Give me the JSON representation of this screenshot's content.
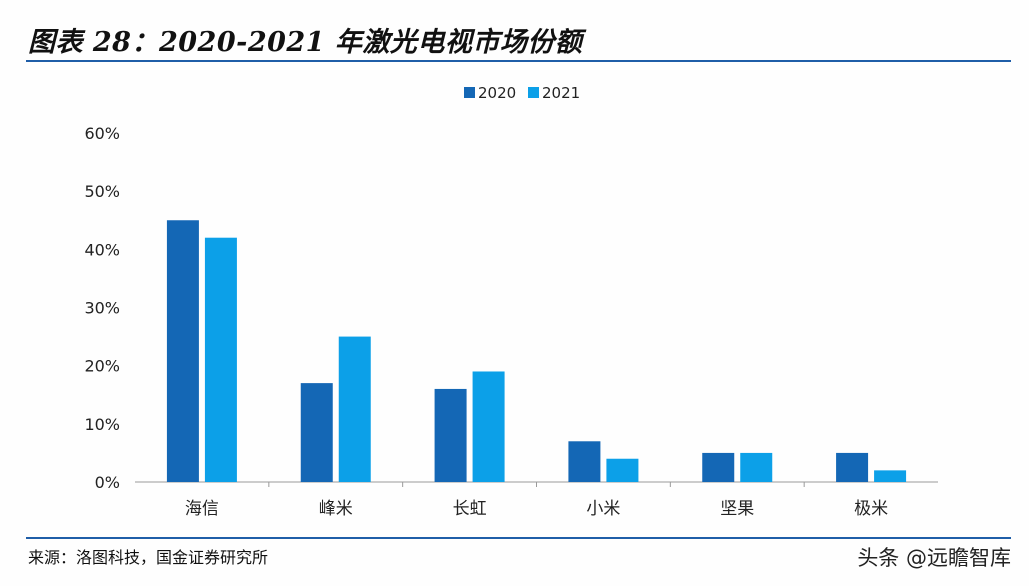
{
  "header": {
    "title": "图表 28：2020-2021 年激光电视市场份额"
  },
  "footer": {
    "source": "来源：洛图科技，国金证券研究所",
    "watermark": "头条 @远瞻智库"
  },
  "colors": {
    "series_2020": "#1467b5",
    "series_2021": "#0ca0e8",
    "axis": "#9a9a9a",
    "rule": "#1f5ea8"
  },
  "chart_data": {
    "type": "bar",
    "title": "",
    "xlabel": "",
    "ylabel": "",
    "categories": [
      "海信",
      "峰米",
      "长虹",
      "小米",
      "坚果",
      "极米"
    ],
    "series": [
      {
        "name": "2020",
        "values": [
          45,
          17,
          16,
          7,
          5,
          5
        ]
      },
      {
        "name": "2021",
        "values": [
          42,
          25,
          19,
          4,
          5,
          2
        ]
      }
    ],
    "ylim": [
      0,
      60
    ],
    "yticks": [
      "0%",
      "10%",
      "20%",
      "30%",
      "40%",
      "50%",
      "60%"
    ],
    "y_unit": "%",
    "grid": false,
    "legend": "top-center"
  }
}
